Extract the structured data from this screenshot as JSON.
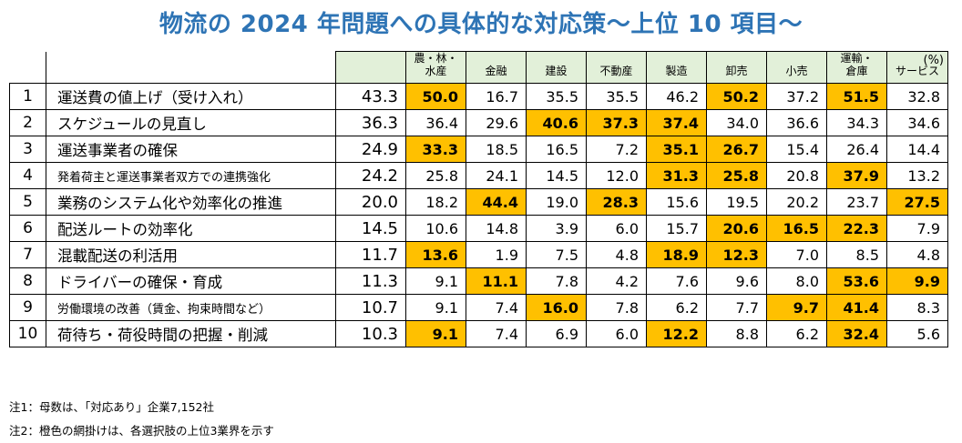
{
  "title": "物流の 2024 年問題への具体的な対応策～上位 10 項目～",
  "unit": "(%)",
  "industries": [
    "農・林・\n水産",
    "金融",
    "建設",
    "不動産",
    "製造",
    "卸売",
    "小売",
    "運輸・\n倉庫",
    "サービス"
  ],
  "rows": [
    {
      "rank": "1",
      "label": "運送費の値上げ（受け入れ）",
      "total": "43.3",
      "values": [
        "50.0",
        "16.7",
        "35.5",
        "35.5",
        "46.2",
        "50.2",
        "37.2",
        "51.5",
        "32.8"
      ],
      "highlight": [
        true,
        false,
        false,
        false,
        false,
        true,
        false,
        true,
        false
      ]
    },
    {
      "rank": "2",
      "label": "スケジュールの見直し",
      "total": "36.3",
      "values": [
        "36.4",
        "29.6",
        "40.6",
        "37.3",
        "37.4",
        "34.0",
        "36.6",
        "34.3",
        "34.6"
      ],
      "highlight": [
        false,
        false,
        true,
        true,
        true,
        false,
        false,
        false,
        false
      ]
    },
    {
      "rank": "3",
      "label": "運送事業者の確保",
      "total": "24.9",
      "values": [
        "33.3",
        "18.5",
        "16.5",
        "7.2",
        "35.1",
        "26.7",
        "15.4",
        "26.4",
        "14.4"
      ],
      "highlight": [
        true,
        false,
        false,
        false,
        true,
        true,
        false,
        false,
        false
      ]
    },
    {
      "rank": "4",
      "label": "発着荷主と運送事業者双方での連携強化",
      "total": "24.2",
      "small": true,
      "values": [
        "25.8",
        "24.1",
        "14.5",
        "12.0",
        "31.3",
        "25.8",
        "20.8",
        "37.9",
        "13.2"
      ],
      "highlight": [
        false,
        false,
        false,
        false,
        true,
        true,
        false,
        true,
        false
      ]
    },
    {
      "rank": "5",
      "label": "業務のシステム化や効率化の推進",
      "total": "20.0",
      "values": [
        "18.2",
        "44.4",
        "19.0",
        "28.3",
        "15.6",
        "19.5",
        "20.2",
        "23.7",
        "27.5"
      ],
      "highlight": [
        false,
        true,
        false,
        true,
        false,
        false,
        false,
        false,
        true
      ]
    },
    {
      "rank": "6",
      "label": "配送ルートの効率化",
      "total": "14.5",
      "values": [
        "10.6",
        "14.8",
        "3.9",
        "6.0",
        "15.7",
        "20.6",
        "16.5",
        "22.3",
        "7.9"
      ],
      "highlight": [
        false,
        false,
        false,
        false,
        false,
        true,
        true,
        true,
        false
      ]
    },
    {
      "rank": "7",
      "label": "混載配送の利活用",
      "total": "11.7",
      "values": [
        "13.6",
        "1.9",
        "7.5",
        "4.8",
        "18.9",
        "12.3",
        "7.0",
        "8.5",
        "4.8"
      ],
      "highlight": [
        true,
        false,
        false,
        false,
        true,
        true,
        false,
        false,
        false
      ]
    },
    {
      "rank": "8",
      "label": "ドライバーの確保・育成",
      "total": "11.3",
      "values": [
        "9.1",
        "11.1",
        "7.8",
        "4.2",
        "7.6",
        "9.6",
        "8.0",
        "53.6",
        "9.9"
      ],
      "highlight": [
        false,
        true,
        false,
        false,
        false,
        false,
        false,
        true,
        true
      ]
    },
    {
      "rank": "9",
      "label": "労働環境の改善（賃金、拘束時間など）",
      "total": "10.7",
      "small": true,
      "values": [
        "9.1",
        "7.4",
        "16.0",
        "7.8",
        "6.2",
        "7.7",
        "9.7",
        "41.4",
        "8.3"
      ],
      "highlight": [
        false,
        false,
        true,
        false,
        false,
        false,
        true,
        true,
        false
      ]
    },
    {
      "rank": "10",
      "label": "荷待ち・荷役時間の把握・削減",
      "total": "10.3",
      "values": [
        "9.1",
        "7.4",
        "6.9",
        "6.0",
        "12.2",
        "8.8",
        "6.2",
        "32.4",
        "5.6"
      ],
      "highlight": [
        true,
        false,
        false,
        false,
        true,
        false,
        false,
        true,
        false
      ]
    }
  ],
  "notes": [
    "注1：母数は、「対応あり」企業7,152社",
    "注2：橙色の網掛けは、各選択肢の上位3業界を示す"
  ],
  "colors": {
    "title": "#2e74b5",
    "header_bg": "#e2f0d9",
    "highlight": "#ffc000"
  }
}
